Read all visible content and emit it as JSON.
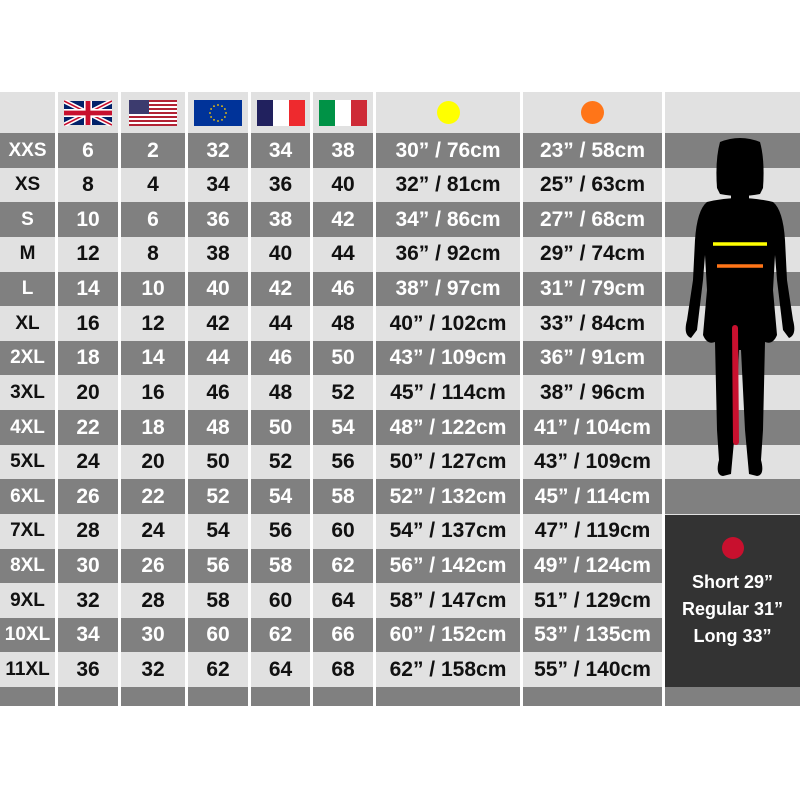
{
  "header": {
    "flags": [
      "uk-flag-icon",
      "us-flag-icon",
      "eu-flag-icon",
      "france-flag-icon",
      "italy-flag-icon"
    ],
    "bust_marker_color": "#ffff00",
    "waist_marker_color": "#ff7518"
  },
  "rows": [
    [
      "XXS",
      "6",
      "2",
      "32",
      "34",
      "38",
      "30” / 76cm",
      "23” / 58cm"
    ],
    [
      "XS",
      "8",
      "4",
      "34",
      "36",
      "40",
      "32” / 81cm",
      "25” / 63cm"
    ],
    [
      "S",
      "10",
      "6",
      "36",
      "38",
      "42",
      "34” / 86cm",
      "27” / 68cm"
    ],
    [
      "M",
      "12",
      "8",
      "38",
      "40",
      "44",
      "36” / 92cm",
      "29” / 74cm"
    ],
    [
      "L",
      "14",
      "10",
      "40",
      "42",
      "46",
      "38” / 97cm",
      "31” / 79cm"
    ],
    [
      "XL",
      "16",
      "12",
      "42",
      "44",
      "48",
      "40” / 102cm",
      "33” / 84cm"
    ],
    [
      "2XL",
      "18",
      "14",
      "44",
      "46",
      "50",
      "43” / 109cm",
      "36” / 91cm"
    ],
    [
      "3XL",
      "20",
      "16",
      "46",
      "48",
      "52",
      "45” / 114cm",
      "38” / 96cm"
    ],
    [
      "4XL",
      "22",
      "18",
      "48",
      "50",
      "54",
      "48” / 122cm",
      "41” / 104cm"
    ],
    [
      "5XL",
      "24",
      "20",
      "50",
      "52",
      "56",
      "50” / 127cm",
      "43” / 109cm"
    ],
    [
      "6XL",
      "26",
      "22",
      "52",
      "54",
      "58",
      "52” / 132cm",
      "45” / 114cm"
    ],
    [
      "7XL",
      "28",
      "24",
      "54",
      "56",
      "60",
      "54” / 137cm",
      "47” / 119cm"
    ],
    [
      "8XL",
      "30",
      "26",
      "56",
      "58",
      "62",
      "56” / 142cm",
      "49” / 124cm"
    ],
    [
      "9XL",
      "32",
      "28",
      "58",
      "60",
      "64",
      "58” / 147cm",
      "51” / 129cm"
    ],
    [
      "10XL",
      "34",
      "30",
      "60",
      "62",
      "66",
      "60” / 152cm",
      "53” / 135cm"
    ],
    [
      "11XL",
      "36",
      "32",
      "62",
      "64",
      "68",
      "62” / 158cm",
      "55” / 140cm"
    ]
  ],
  "figure": {
    "icon": "woman-silhouette-icon",
    "bust_line_color": "#ffff00",
    "waist_line_color": "#ff7518",
    "inseam_line_color": "#c8102e"
  },
  "inseam_legend": {
    "marker_color": "#c8102e",
    "lines": [
      "Short 29”",
      "Regular 31”",
      "Long 33”"
    ]
  }
}
